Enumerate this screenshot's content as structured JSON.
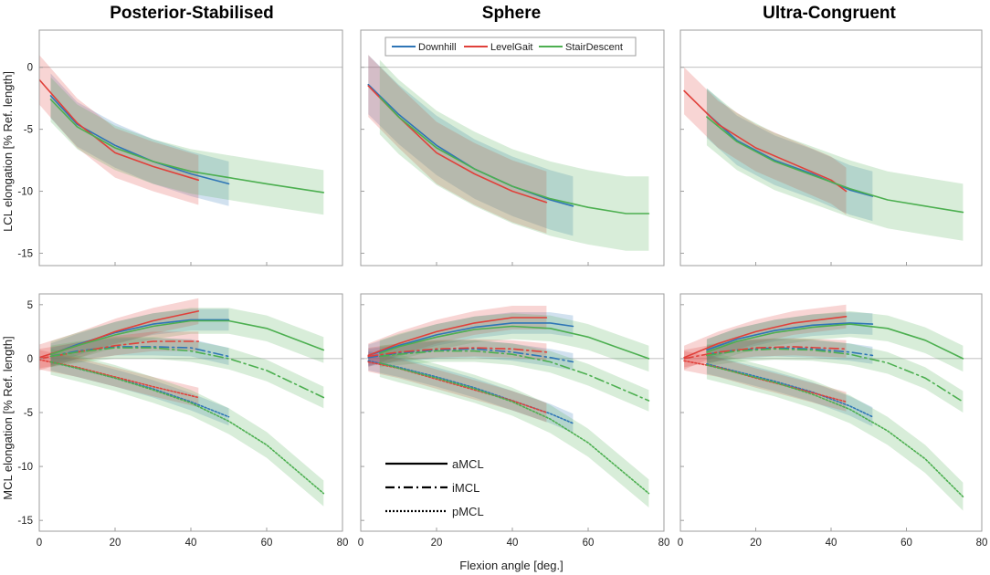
{
  "figure": {
    "columns": [
      "Posterior-Stabilised",
      "Sphere",
      "Ultra-Congruent"
    ],
    "xlabel": "Flexion angle [deg.]",
    "xlim": [
      0,
      80
    ],
    "xticks": [
      0,
      20,
      40,
      60,
      80
    ],
    "rows": [
      {
        "ylabel": "LCL elongation [% Ref. length]",
        "ylim": [
          -16,
          3
        ],
        "yticks": [
          0,
          -5,
          -10,
          -15
        ]
      },
      {
        "ylabel": "MCL elongation [% Ref. length]",
        "ylim": [
          -16,
          6
        ],
        "yticks": [
          5,
          0,
          -5,
          -10,
          -15
        ]
      }
    ],
    "colors": {
      "Downhill": "#2e75b6",
      "LevelGait": "#e0403a",
      "StairDescent": "#4caf50",
      "frame": "#9e9e9e",
      "zero": "#aaaaaa"
    },
    "legend_activities": [
      "Downhill",
      "LevelGait",
      "StairDescent"
    ],
    "legend_ligaments": [
      {
        "label": "aMCL",
        "style": "solid"
      },
      {
        "label": "iMCL",
        "style": "dashdot"
      },
      {
        "label": "pMCL",
        "style": "dotted"
      }
    ]
  },
  "chart_data": [
    {
      "type": "line",
      "title": "Posterior-Stabilised",
      "row": "LCL",
      "xlabel": "",
      "ylabel": "LCL elongation [% Ref. length]",
      "xlim": [
        0,
        80
      ],
      "ylim": [
        -16,
        3
      ],
      "series": [
        {
          "name": "Downhill",
          "ligament": "LCL",
          "x": [
            3,
            10,
            20,
            30,
            40,
            50
          ],
          "y": [
            -2.3,
            -4.6,
            -6.3,
            -7.6,
            -8.6,
            -9.4
          ],
          "band": 1.8
        },
        {
          "name": "LevelGait",
          "ligament": "LCL",
          "x": [
            0,
            10,
            20,
            30,
            42
          ],
          "y": [
            -1.0,
            -4.5,
            -6.9,
            -8.0,
            -9.1
          ],
          "band": 2.0
        },
        {
          "name": "StairDescent",
          "ligament": "LCL",
          "x": [
            3,
            10,
            20,
            30,
            40,
            50,
            60,
            75
          ],
          "y": [
            -2.6,
            -4.8,
            -6.5,
            -7.6,
            -8.4,
            -8.9,
            -9.4,
            -10.1
          ],
          "band": 1.8
        }
      ]
    },
    {
      "type": "line",
      "title": "Sphere",
      "row": "LCL",
      "xlabel": "",
      "ylabel": "",
      "xlim": [
        0,
        80
      ],
      "ylim": [
        -16,
        3
      ],
      "series": [
        {
          "name": "Downhill",
          "ligament": "LCL",
          "x": [
            2,
            10,
            20,
            30,
            40,
            50,
            56
          ],
          "y": [
            -1.4,
            -3.8,
            -6.3,
            -8.2,
            -9.6,
            -10.7,
            -11.2
          ],
          "band": 2.4
        },
        {
          "name": "LevelGait",
          "ligament": "LCL",
          "x": [
            2,
            10,
            20,
            30,
            40,
            49
          ],
          "y": [
            -1.5,
            -4.0,
            -6.9,
            -8.6,
            -10.0,
            -10.9
          ],
          "band": 2.5
        },
        {
          "name": "StairDescent",
          "ligament": "LCL",
          "x": [
            5,
            10,
            20,
            30,
            40,
            50,
            60,
            70,
            76
          ],
          "y": [
            -2.4,
            -4.0,
            -6.5,
            -8.2,
            -9.6,
            -10.6,
            -11.3,
            -11.8,
            -11.8
          ],
          "band": 3.0
        }
      ]
    },
    {
      "type": "line",
      "title": "Ultra-Congruent",
      "row": "LCL",
      "xlabel": "",
      "ylabel": "",
      "xlim": [
        0,
        80
      ],
      "ylim": [
        -16,
        3
      ],
      "series": [
        {
          "name": "Downhill",
          "ligament": "LCL",
          "x": [
            7,
            15,
            25,
            35,
            45,
            51
          ],
          "y": [
            -3.7,
            -5.9,
            -7.5,
            -8.6,
            -9.9,
            -10.4
          ],
          "band": 2.0
        },
        {
          "name": "LevelGait",
          "ligament": "LCL",
          "x": [
            1,
            10,
            20,
            30,
            40,
            44
          ],
          "y": [
            -1.9,
            -4.6,
            -6.5,
            -7.8,
            -9.1,
            -10.0
          ],
          "band": 1.9
        },
        {
          "name": "StairDescent",
          "ligament": "LCL",
          "x": [
            7,
            15,
            25,
            35,
            45,
            55,
            65,
            75
          ],
          "y": [
            -4.0,
            -6.0,
            -7.6,
            -8.7,
            -9.8,
            -10.7,
            -11.2,
            -11.7
          ],
          "band": 2.3
        }
      ]
    },
    {
      "type": "line",
      "title": "Posterior-Stabilised",
      "row": "MCL",
      "xlabel": "Flexion angle [deg.]",
      "ylabel": "MCL elongation [% Ref. length]",
      "xlim": [
        0,
        80
      ],
      "ylim": [
        -16,
        6
      ],
      "series": [
        {
          "name": "Downhill",
          "ligament": "aMCL",
          "x": [
            3,
            10,
            20,
            30,
            40,
            50
          ],
          "y": [
            0.4,
            1.3,
            2.4,
            3.2,
            3.6,
            3.6
          ],
          "band": 1.0
        },
        {
          "name": "LevelGait",
          "ligament": "aMCL",
          "x": [
            0,
            10,
            20,
            30,
            42
          ],
          "y": [
            0.1,
            1.2,
            2.5,
            3.5,
            4.4
          ],
          "band": 1.2
        },
        {
          "name": "StairDescent",
          "ligament": "aMCL",
          "x": [
            3,
            10,
            20,
            30,
            40,
            50,
            60,
            75
          ],
          "y": [
            0.4,
            1.2,
            2.2,
            3.0,
            3.5,
            3.5,
            2.8,
            0.8
          ],
          "band": 1.2
        },
        {
          "name": "Downhill",
          "ligament": "iMCL",
          "x": [
            3,
            10,
            20,
            30,
            40,
            50
          ],
          "y": [
            0.2,
            0.7,
            1.1,
            1.1,
            1.0,
            0.2
          ],
          "band": 0.8
        },
        {
          "name": "LevelGait",
          "ligament": "iMCL",
          "x": [
            0,
            10,
            20,
            30,
            42
          ],
          "y": [
            0.0,
            0.6,
            1.2,
            1.6,
            1.6
          ],
          "band": 0.9
        },
        {
          "name": "StairDescent",
          "ligament": "iMCL",
          "x": [
            3,
            10,
            20,
            30,
            40,
            50,
            60,
            75
          ],
          "y": [
            0.2,
            0.6,
            1.0,
            1.0,
            0.7,
            0.0,
            -1.1,
            -3.6
          ],
          "band": 1.0
        },
        {
          "name": "Downhill",
          "ligament": "pMCL",
          "x": [
            3,
            10,
            20,
            30,
            40,
            50
          ],
          "y": [
            -0.3,
            -0.9,
            -1.8,
            -2.8,
            -4.0,
            -5.4
          ],
          "band": 0.8
        },
        {
          "name": "LevelGait",
          "ligament": "pMCL",
          "x": [
            0,
            10,
            20,
            30,
            42
          ],
          "y": [
            -0.1,
            -0.8,
            -1.7,
            -2.6,
            -3.6
          ],
          "band": 0.9
        },
        {
          "name": "StairDescent",
          "ligament": "pMCL",
          "x": [
            3,
            10,
            20,
            30,
            40,
            50,
            60,
            75
          ],
          "y": [
            -0.3,
            -0.9,
            -1.8,
            -2.9,
            -4.1,
            -5.8,
            -8.0,
            -12.5
          ],
          "band": 1.2
        }
      ]
    },
    {
      "type": "line",
      "title": "Sphere",
      "row": "MCL",
      "xlabel": "Flexion angle [deg.]",
      "ylabel": "",
      "xlim": [
        0,
        80
      ],
      "ylim": [
        -16,
        6
      ],
      "series": [
        {
          "name": "Downhill",
          "ligament": "aMCL",
          "x": [
            2,
            10,
            20,
            30,
            40,
            50,
            56
          ],
          "y": [
            0.3,
            1.2,
            2.2,
            2.9,
            3.3,
            3.3,
            3.0
          ],
          "band": 1.0
        },
        {
          "name": "LevelGait",
          "ligament": "aMCL",
          "x": [
            2,
            10,
            20,
            30,
            40,
            49
          ],
          "y": [
            0.3,
            1.4,
            2.5,
            3.3,
            3.8,
            3.8
          ],
          "band": 1.1
        },
        {
          "name": "StairDescent",
          "ligament": "aMCL",
          "x": [
            5,
            10,
            20,
            30,
            40,
            50,
            60,
            76
          ],
          "y": [
            0.5,
            1.1,
            2.0,
            2.7,
            3.0,
            2.8,
            2.0,
            0.0
          ],
          "band": 1.2
        },
        {
          "name": "Downhill",
          "ligament": "iMCL",
          "x": [
            2,
            10,
            20,
            30,
            40,
            50,
            56
          ],
          "y": [
            0.1,
            0.5,
            0.8,
            0.9,
            0.6,
            0.1,
            -0.3
          ],
          "band": 0.8
        },
        {
          "name": "LevelGait",
          "ligament": "iMCL",
          "x": [
            2,
            10,
            20,
            30,
            40,
            49
          ],
          "y": [
            0.2,
            0.6,
            0.9,
            1.0,
            0.9,
            0.6
          ],
          "band": 0.8
        },
        {
          "name": "StairDescent",
          "ligament": "iMCL",
          "x": [
            5,
            10,
            20,
            30,
            40,
            50,
            60,
            76
          ],
          "y": [
            0.2,
            0.4,
            0.7,
            0.7,
            0.4,
            -0.3,
            -1.5,
            -3.9
          ],
          "band": 1.0
        },
        {
          "name": "Downhill",
          "ligament": "pMCL",
          "x": [
            2,
            10,
            20,
            30,
            40,
            50,
            56
          ],
          "y": [
            -0.2,
            -0.8,
            -1.7,
            -2.7,
            -3.9,
            -5.1,
            -6.0
          ],
          "band": 0.9
        },
        {
          "name": "LevelGait",
          "ligament": "pMCL",
          "x": [
            2,
            10,
            20,
            30,
            40,
            49
          ],
          "y": [
            -0.3,
            -0.9,
            -1.9,
            -2.9,
            -3.9,
            -5.0
          ],
          "band": 0.9
        },
        {
          "name": "StairDescent",
          "ligament": "pMCL",
          "x": [
            5,
            10,
            20,
            30,
            40,
            50,
            60,
            76
          ],
          "y": [
            -0.4,
            -0.9,
            -1.8,
            -2.8,
            -4.0,
            -5.6,
            -7.8,
            -12.5
          ],
          "band": 1.3
        }
      ]
    },
    {
      "type": "line",
      "title": "Ultra-Congruent",
      "row": "MCL",
      "xlabel": "Flexion angle [deg.]",
      "ylabel": "",
      "xlim": [
        0,
        80
      ],
      "ylim": [
        -16,
        6
      ],
      "series": [
        {
          "name": "Downhill",
          "ligament": "aMCL",
          "x": [
            7,
            15,
            25,
            35,
            45,
            51
          ],
          "y": [
            0.8,
            1.8,
            2.6,
            3.1,
            3.3,
            3.2
          ],
          "band": 1.0
        },
        {
          "name": "LevelGait",
          "ligament": "aMCL",
          "x": [
            1,
            10,
            20,
            30,
            44
          ],
          "y": [
            0.1,
            1.4,
            2.5,
            3.3,
            3.9
          ],
          "band": 1.1
        },
        {
          "name": "StairDescent",
          "ligament": "aMCL",
          "x": [
            7,
            15,
            25,
            35,
            45,
            55,
            65,
            75
          ],
          "y": [
            0.6,
            1.6,
            2.4,
            2.9,
            3.2,
            2.8,
            1.7,
            0.0
          ],
          "band": 1.2
        },
        {
          "name": "Downhill",
          "ligament": "iMCL",
          "x": [
            7,
            15,
            25,
            35,
            45,
            51
          ],
          "y": [
            0.4,
            0.8,
            1.0,
            0.9,
            0.6,
            0.3
          ],
          "band": 0.8
        },
        {
          "name": "LevelGait",
          "ligament": "iMCL",
          "x": [
            1,
            10,
            20,
            30,
            44
          ],
          "y": [
            0.0,
            0.6,
            1.0,
            1.1,
            0.9
          ],
          "band": 0.8
        },
        {
          "name": "StairDescent",
          "ligament": "iMCL",
          "x": [
            7,
            15,
            25,
            35,
            45,
            55,
            65,
            75
          ],
          "y": [
            0.3,
            0.7,
            0.9,
            0.8,
            0.4,
            -0.4,
            -1.8,
            -4.0
          ],
          "band": 1.0
        },
        {
          "name": "Downhill",
          "ligament": "pMCL",
          "x": [
            7,
            15,
            25,
            35,
            45,
            51
          ],
          "y": [
            -0.5,
            -1.2,
            -2.1,
            -3.1,
            -4.4,
            -5.4
          ],
          "band": 0.9
        },
        {
          "name": "LevelGait",
          "ligament": "pMCL",
          "x": [
            1,
            10,
            20,
            30,
            44
          ],
          "y": [
            -0.2,
            -0.8,
            -1.8,
            -2.7,
            -4.0
          ],
          "band": 0.9
        },
        {
          "name": "StairDescent",
          "ligament": "pMCL",
          "x": [
            7,
            15,
            25,
            35,
            45,
            55,
            65,
            75
          ],
          "y": [
            -0.6,
            -1.3,
            -2.2,
            -3.3,
            -4.7,
            -6.7,
            -9.3,
            -12.8
          ],
          "band": 1.3
        }
      ]
    }
  ]
}
